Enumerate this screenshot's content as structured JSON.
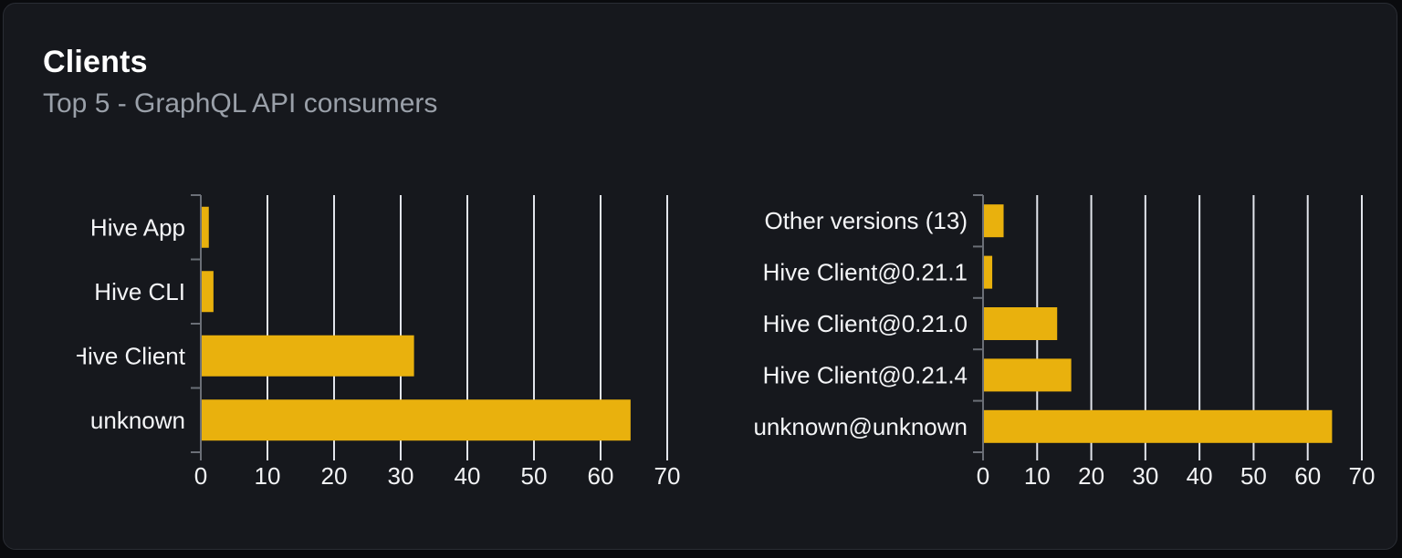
{
  "panel": {
    "title": "Clients",
    "subtitle": "Top 5 - GraphQL API consumers"
  },
  "colors": {
    "bar": "#e9b10d",
    "gridline": "#e2e5ec",
    "axis": "#6b6f77",
    "tick_label": "#f2f3f5",
    "category_label": "#f4f5f7",
    "card_background": "#16181d",
    "card_border": "#2a2d34",
    "page_background": "#0a0b0e",
    "title_color": "#ffffff",
    "subtitle_color": "#9aa0a9"
  },
  "chart_data": [
    {
      "type": "bar",
      "orientation": "horizontal",
      "categories": [
        "Hive App",
        "Hive CLI",
        "Hive Client",
        "unknown"
      ],
      "values": [
        1.2,
        1.9,
        32,
        64.5
      ],
      "xlim": [
        0,
        70
      ],
      "xticks": [
        0,
        10,
        20,
        30,
        40,
        50,
        60,
        70
      ],
      "grid": true,
      "legend": "none",
      "xlabel": "",
      "ylabel": ""
    },
    {
      "type": "bar",
      "orientation": "horizontal",
      "categories": [
        "Other versions (13)",
        "Hive Client@0.21.1",
        "Hive Client@0.21.0",
        "Hive Client@0.21.4",
        "unknown@unknown"
      ],
      "values": [
        3.8,
        1.7,
        13.7,
        16.3,
        64.5
      ],
      "xlim": [
        0,
        70
      ],
      "xticks": [
        0,
        10,
        20,
        30,
        40,
        50,
        60,
        70
      ],
      "grid": true,
      "legend": "none",
      "xlabel": "",
      "ylabel": ""
    }
  ]
}
